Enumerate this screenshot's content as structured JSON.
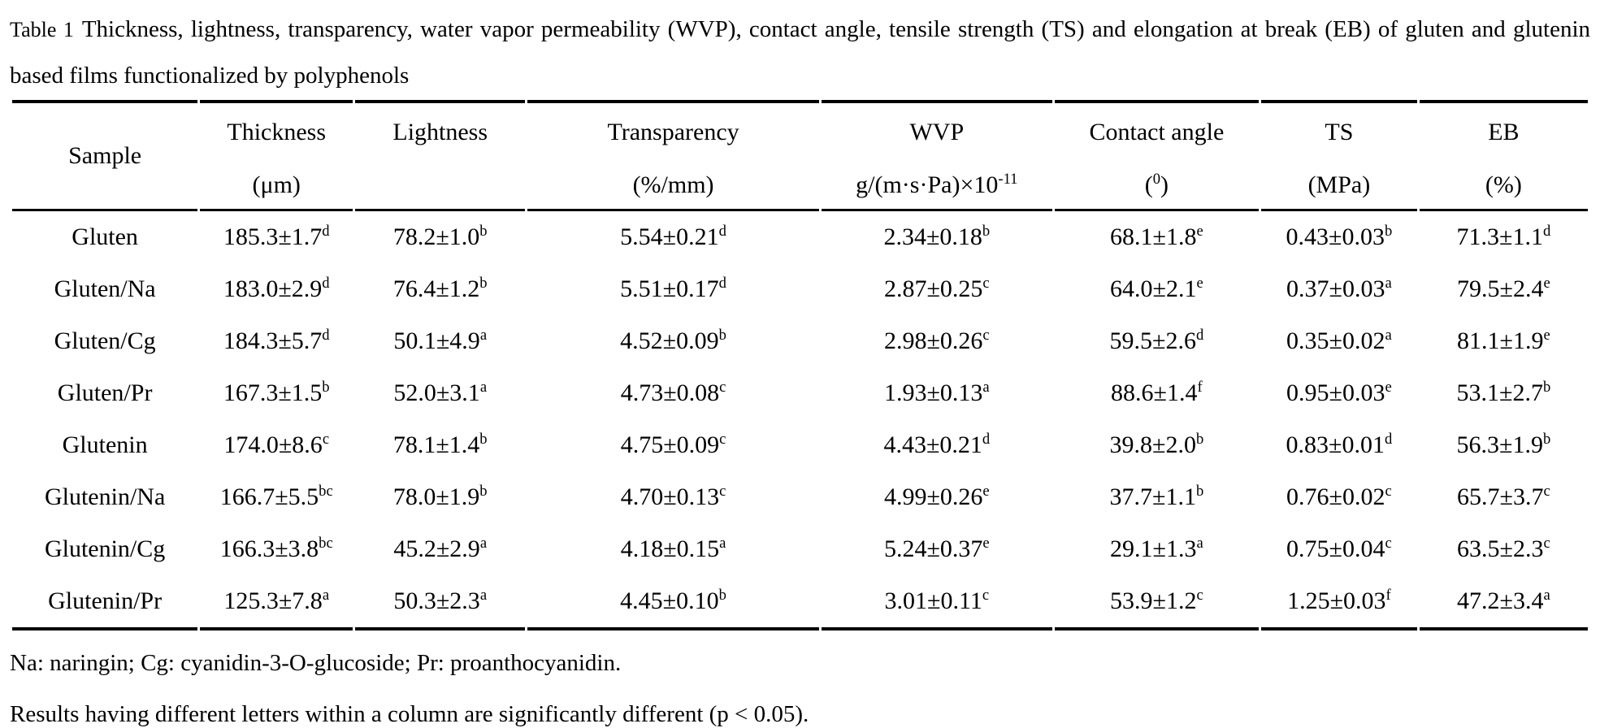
{
  "page": {
    "title_label": "Table 1",
    "title_rest": "Thickness, lightness, transparency, water vapor permeability (WVP), contact angle, tensile strength (TS) and elongation at break (EB) of gluten and glutenin based films functionalized by polyphenols",
    "footnote1": "Na: naringin; Cg: cyanidin-3-O-glucoside; Pr: proanthocyanidin.",
    "footnote2": "Results having different letters within a column are significantly different (p < 0.05)."
  },
  "colors": {
    "text": "#000000",
    "background": "#ffffff",
    "rule": "#000000"
  },
  "table": {
    "columns": [
      {
        "label": "Sample"
      },
      {
        "label": "Thickness",
        "unit_pre": "(μm)"
      },
      {
        "label": "Lightness",
        "unit_pre": ""
      },
      {
        "label": "Transparency",
        "unit_pre": "(%/mm)"
      },
      {
        "label": "WVP",
        "unit_pre": "g/(m·s·Pa)×10",
        "unit_sup": "-11"
      },
      {
        "label": "Contact angle",
        "unit_pre": "(",
        "unit_sup": "0",
        "unit_post": ")"
      },
      {
        "label": "TS",
        "unit_pre": "(MPa)"
      },
      {
        "label": "EB",
        "unit_pre": "(%)"
      }
    ],
    "rows": [
      {
        "sample": "Gluten",
        "cells": [
          {
            "v": "185.3±1.7",
            "s": "d"
          },
          {
            "v": "78.2±1.0",
            "s": "b"
          },
          {
            "v": "5.54±0.21",
            "s": "d"
          },
          {
            "v": "2.34±0.18",
            "s": "b"
          },
          {
            "v": "68.1±1.8",
            "s": "e"
          },
          {
            "v": "0.43±0.03",
            "s": "b"
          },
          {
            "v": "71.3±1.1",
            "s": "d"
          }
        ]
      },
      {
        "sample": "Gluten/Na",
        "cells": [
          {
            "v": "183.0±2.9",
            "s": "d"
          },
          {
            "v": "76.4±1.2",
            "s": "b"
          },
          {
            "v": "5.51±0.17",
            "s": "d"
          },
          {
            "v": "2.87±0.25",
            "s": "c"
          },
          {
            "v": "64.0±2.1",
            "s": "e"
          },
          {
            "v": "0.37±0.03",
            "s": "a"
          },
          {
            "v": "79.5±2.4",
            "s": "e"
          }
        ]
      },
      {
        "sample": "Gluten/Cg",
        "cells": [
          {
            "v": "184.3±5.7",
            "s": "d"
          },
          {
            "v": "50.1±4.9",
            "s": "a"
          },
          {
            "v": "4.52±0.09",
            "s": "b"
          },
          {
            "v": "2.98±0.26",
            "s": "c"
          },
          {
            "v": "59.5±2.6",
            "s": "d"
          },
          {
            "v": "0.35±0.02",
            "s": "a"
          },
          {
            "v": "81.1±1.9",
            "s": "e"
          }
        ]
      },
      {
        "sample": "Gluten/Pr",
        "cells": [
          {
            "v": "167.3±1.5",
            "s": "b"
          },
          {
            "v": "52.0±3.1",
            "s": "a"
          },
          {
            "v": "4.73±0.08",
            "s": "c"
          },
          {
            "v": "1.93±0.13",
            "s": "a"
          },
          {
            "v": "88.6±1.4",
            "s": "f"
          },
          {
            "v": "0.95±0.03",
            "s": "e"
          },
          {
            "v": "53.1±2.7",
            "s": "b"
          }
        ]
      },
      {
        "sample": "Glutenin",
        "cells": [
          {
            "v": "174.0±8.6",
            "s": "c"
          },
          {
            "v": "78.1±1.4",
            "s": "b"
          },
          {
            "v": "4.75±0.09",
            "s": "c"
          },
          {
            "v": "4.43±0.21",
            "s": "d"
          },
          {
            "v": "39.8±2.0",
            "s": "b"
          },
          {
            "v": "0.83±0.01",
            "s": "d"
          },
          {
            "v": "56.3±1.9",
            "s": "b"
          }
        ]
      },
      {
        "sample": "Glutenin/Na",
        "cells": [
          {
            "v": "166.7±5.5",
            "s": "bc"
          },
          {
            "v": "78.0±1.9",
            "s": "b"
          },
          {
            "v": "4.70±0.13",
            "s": "c"
          },
          {
            "v": "4.99±0.26",
            "s": "e"
          },
          {
            "v": "37.7±1.1",
            "s": "b"
          },
          {
            "v": "0.76±0.02",
            "s": "c"
          },
          {
            "v": "65.7±3.7",
            "s": "c"
          }
        ]
      },
      {
        "sample": "Glutenin/Cg",
        "cells": [
          {
            "v": "166.3±3.8",
            "s": "bc"
          },
          {
            "v": "45.2±2.9",
            "s": "a"
          },
          {
            "v": "4.18±0.15",
            "s": "a"
          },
          {
            "v": "5.24±0.37",
            "s": "e"
          },
          {
            "v": "29.1±1.3",
            "s": "a"
          },
          {
            "v": "0.75±0.04",
            "s": "c"
          },
          {
            "v": "63.5±2.3",
            "s": "c"
          }
        ]
      },
      {
        "sample": "Glutenin/Pr",
        "cells": [
          {
            "v": "125.3±7.8",
            "s": "a"
          },
          {
            "v": "50.3±2.3",
            "s": "a"
          },
          {
            "v": "4.45±0.10",
            "s": "b"
          },
          {
            "v": "3.01±0.11",
            "s": "c"
          },
          {
            "v": "53.9±1.2",
            "s": "c"
          },
          {
            "v": "1.25±0.03",
            "s": "f"
          },
          {
            "v": "47.2±3.4",
            "s": "a"
          }
        ]
      }
    ]
  }
}
